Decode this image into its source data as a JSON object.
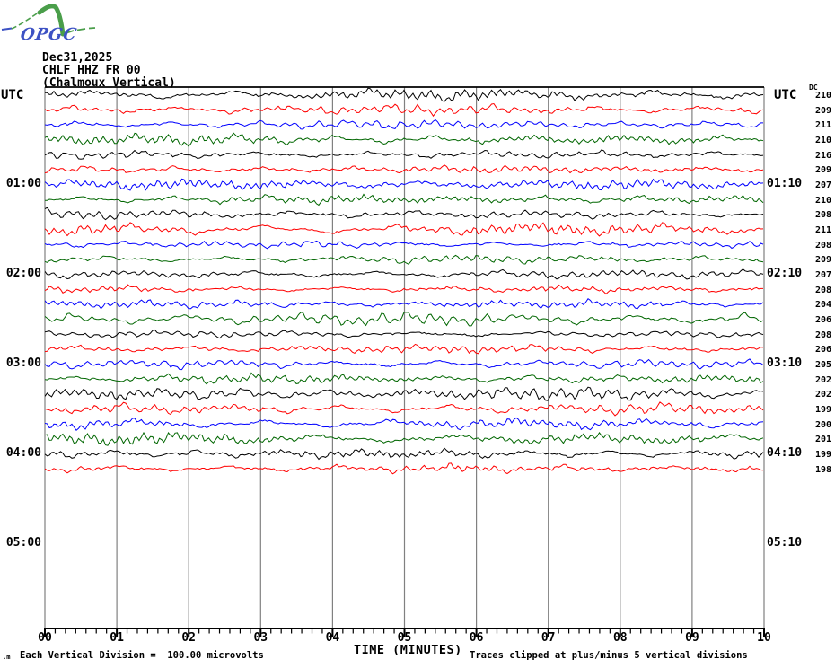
{
  "logo": {
    "text": "OPGC",
    "green": "#4a9e4a",
    "blue": "#3d52c4"
  },
  "header": {
    "date": "Dec31,2025",
    "station": "CHLF HHZ FR 00",
    "location": "(Chalmoux Vertical)"
  },
  "axes": {
    "utc_left_header": "UTC",
    "utc_right_header": "UTC",
    "dc_header": "DC",
    "left_times": [
      "01:00",
      "02:00",
      "03:00",
      "04:00",
      "05:00"
    ],
    "right_times": [
      "01:10",
      "02:10",
      "03:10",
      "04:10",
      "05:10"
    ],
    "hour_row_indices": [
      6,
      12,
      18,
      24,
      30
    ],
    "x_ticks": [
      "00",
      "01",
      "02",
      "03",
      "04",
      "05",
      "06",
      "07",
      "08",
      "09",
      "10"
    ],
    "x_label": "TIME (MINUTES)"
  },
  "footer": {
    "corner_glyph": ".m",
    "left_note": "Each Vertical Division =  100.00 microvolts",
    "right_note": "Traces clipped at plus/minus 5 vertical divisions"
  },
  "chart_data": {
    "type": "line",
    "kind": "helicorder-seismogram",
    "title": "CHLF HHZ FR 00 (Chalmoux Vertical) Dec31,2025",
    "xlabel": "TIME (MINUTES)",
    "x_range_minutes": [
      0,
      10
    ],
    "major_tick_step_minutes": 1,
    "minor_ticks_per_major": 6,
    "row_duration_minutes": 10,
    "trace_color_cycle": [
      "#000000",
      "#ff0000",
      "#0000ff",
      "#006600"
    ],
    "gridline_color": "#808080",
    "amplitude_scale": {
      "microvolts_per_division": "100.00",
      "clip_divisions": 5
    },
    "rows": [
      {
        "start": "00:00",
        "color": "#000000",
        "dc": 210
      },
      {
        "start": "00:10",
        "color": "#ff0000",
        "dc": 209
      },
      {
        "start": "00:20",
        "color": "#0000ff",
        "dc": 211
      },
      {
        "start": "00:30",
        "color": "#006600",
        "dc": 210
      },
      {
        "start": "00:40",
        "color": "#000000",
        "dc": 216
      },
      {
        "start": "00:50",
        "color": "#ff0000",
        "dc": 209
      },
      {
        "start": "01:00",
        "color": "#0000ff",
        "dc": 207
      },
      {
        "start": "01:10",
        "color": "#006600",
        "dc": 210
      },
      {
        "start": "01:20",
        "color": "#000000",
        "dc": 208
      },
      {
        "start": "01:30",
        "color": "#ff0000",
        "dc": 211
      },
      {
        "start": "01:40",
        "color": "#0000ff",
        "dc": 208
      },
      {
        "start": "01:50",
        "color": "#006600",
        "dc": 209
      },
      {
        "start": "02:00",
        "color": "#000000",
        "dc": 207
      },
      {
        "start": "02:10",
        "color": "#ff0000",
        "dc": 208
      },
      {
        "start": "02:20",
        "color": "#0000ff",
        "dc": 204
      },
      {
        "start": "02:30",
        "color": "#006600",
        "dc": 206
      },
      {
        "start": "02:40",
        "color": "#000000",
        "dc": 208
      },
      {
        "start": "02:50",
        "color": "#ff0000",
        "dc": 206
      },
      {
        "start": "03:00",
        "color": "#0000ff",
        "dc": 205
      },
      {
        "start": "03:10",
        "color": "#006600",
        "dc": 202
      },
      {
        "start": "03:20",
        "color": "#000000",
        "dc": 202
      },
      {
        "start": "03:30",
        "color": "#ff0000",
        "dc": 199
      },
      {
        "start": "03:40",
        "color": "#0000ff",
        "dc": 200
      },
      {
        "start": "03:50",
        "color": "#006600",
        "dc": 201
      },
      {
        "start": "04:00",
        "color": "#000000",
        "dc": 199
      },
      {
        "start": "04:10",
        "color": "#ff0000",
        "dc": 198
      }
    ]
  }
}
